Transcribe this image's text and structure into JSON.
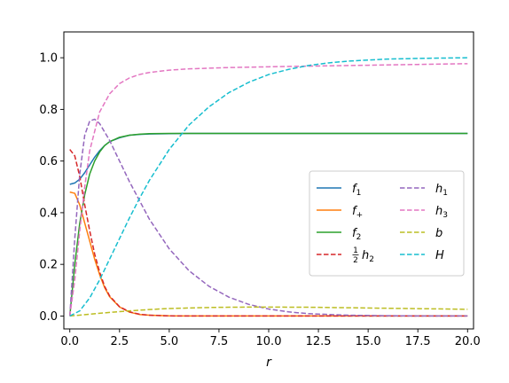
{
  "chart_data": {
    "type": "line",
    "xlabel": "r",
    "ylabel": "",
    "xlim": [
      -0.3,
      20.3
    ],
    "ylim": [
      -0.05,
      1.1
    ],
    "xticks": [
      "0.0",
      "2.5",
      "5.0",
      "7.5",
      "10.0",
      "12.5",
      "15.0",
      "17.5",
      "20.0"
    ],
    "yticks": [
      "0.0",
      "0.2",
      "0.4",
      "0.6",
      "0.8",
      "1.0"
    ],
    "grid": false,
    "legend": {
      "position": "center-right",
      "columns": 2
    },
    "series": [
      {
        "name": "f_1",
        "label_main": "f",
        "label_sub": "1",
        "color": "#1f77b4",
        "style": "solid",
        "x": [
          0,
          0.25,
          0.5,
          0.75,
          1,
          1.25,
          1.5,
          1.75,
          2,
          2.5,
          3,
          3.5,
          4,
          5,
          6,
          8,
          10,
          15,
          20
        ],
        "y": [
          0.51,
          0.515,
          0.53,
          0.555,
          0.585,
          0.615,
          0.64,
          0.66,
          0.675,
          0.69,
          0.7,
          0.703,
          0.705,
          0.706,
          0.707,
          0.707,
          0.707,
          0.707,
          0.707
        ]
      },
      {
        "name": "f_+",
        "label_main": "f",
        "label_sub": "+",
        "color": "#ff7f0e",
        "style": "solid",
        "x": [
          0,
          0.25,
          0.5,
          0.75,
          1,
          1.25,
          1.5,
          1.75,
          2,
          2.5,
          3,
          3.5,
          4,
          5,
          6,
          8,
          10,
          15,
          20
        ],
        "y": [
          0.48,
          0.475,
          0.43,
          0.36,
          0.29,
          0.22,
          0.16,
          0.11,
          0.075,
          0.035,
          0.015,
          0.006,
          0.003,
          0.0005,
          0,
          0,
          0,
          0,
          0
        ]
      },
      {
        "name": "f_2",
        "label_main": "f",
        "label_sub": "2",
        "color": "#2ca02c",
        "style": "solid",
        "x": [
          0,
          0.25,
          0.5,
          0.75,
          1,
          1.25,
          1.5,
          1.75,
          2,
          2.5,
          3,
          3.5,
          4,
          5,
          6,
          8,
          10,
          15,
          20
        ],
        "y": [
          0,
          0.2,
          0.36,
          0.47,
          0.55,
          0.6,
          0.635,
          0.66,
          0.675,
          0.692,
          0.7,
          0.704,
          0.706,
          0.707,
          0.707,
          0.707,
          0.707,
          0.707,
          0.707
        ]
      },
      {
        "name": "1/2 h_2",
        "label_main": "h",
        "label_sub": "2",
        "label_prefix_num": "1",
        "label_prefix_den": "2",
        "color": "#d62728",
        "style": "dashed",
        "x": [
          0,
          0.25,
          0.5,
          0.75,
          1,
          1.25,
          1.5,
          1.75,
          2,
          2.5,
          3,
          3.5,
          4,
          5,
          6,
          8,
          10,
          15,
          20
        ],
        "y": [
          0.645,
          0.62,
          0.54,
          0.43,
          0.33,
          0.24,
          0.17,
          0.115,
          0.078,
          0.036,
          0.016,
          0.007,
          0.003,
          0.0005,
          0,
          0,
          0,
          0,
          0
        ]
      },
      {
        "name": "h_1",
        "label_main": "h",
        "label_sub": "1",
        "color": "#9467bd",
        "style": "dashed",
        "x": [
          0,
          0.25,
          0.5,
          0.75,
          1,
          1.25,
          1.5,
          2,
          2.5,
          3,
          4,
          5,
          6,
          7,
          8,
          9,
          10,
          11,
          12,
          14,
          16,
          18,
          20
        ],
        "y": [
          0,
          0.3,
          0.55,
          0.7,
          0.755,
          0.762,
          0.745,
          0.68,
          0.6,
          0.52,
          0.375,
          0.26,
          0.175,
          0.115,
          0.073,
          0.045,
          0.027,
          0.016,
          0.009,
          0.003,
          0.001,
          0,
          0
        ]
      },
      {
        "name": "h_3",
        "label_main": "h",
        "label_sub": "3",
        "color": "#e377c2",
        "style": "dashed",
        "x": [
          0,
          0.25,
          0.5,
          0.75,
          1,
          1.5,
          2,
          2.5,
          3,
          3.5,
          4,
          5,
          6,
          8,
          10,
          12.5,
          15,
          17.5,
          20
        ],
        "y": [
          0,
          0.14,
          0.33,
          0.5,
          0.64,
          0.79,
          0.86,
          0.9,
          0.922,
          0.935,
          0.943,
          0.952,
          0.957,
          0.962,
          0.965,
          0.968,
          0.971,
          0.974,
          0.977
        ]
      },
      {
        "name": "b",
        "label_main": "b",
        "label_sub": "",
        "color": "#bcbd22",
        "style": "dashed",
        "x": [
          0,
          1,
          2,
          3,
          4,
          5,
          6,
          7,
          8,
          9,
          10,
          12,
          14,
          16,
          18,
          20
        ],
        "y": [
          0,
          0.007,
          0.014,
          0.02,
          0.025,
          0.029,
          0.031,
          0.033,
          0.034,
          0.0345,
          0.0345,
          0.034,
          0.032,
          0.03,
          0.028,
          0.026
        ]
      },
      {
        "name": "H",
        "label_main": "H",
        "label_sub": "",
        "color": "#17becf",
        "style": "dashed",
        "x": [
          0,
          0.5,
          1,
          1.5,
          2,
          2.5,
          3,
          3.5,
          4,
          5,
          6,
          7,
          8,
          9,
          10,
          11,
          12,
          13,
          14,
          16,
          18,
          20
        ],
        "y": [
          0,
          0.02,
          0.07,
          0.14,
          0.22,
          0.3,
          0.38,
          0.455,
          0.525,
          0.645,
          0.74,
          0.81,
          0.865,
          0.905,
          0.935,
          0.955,
          0.97,
          0.98,
          0.987,
          0.995,
          0.998,
          1.0
        ]
      }
    ]
  }
}
